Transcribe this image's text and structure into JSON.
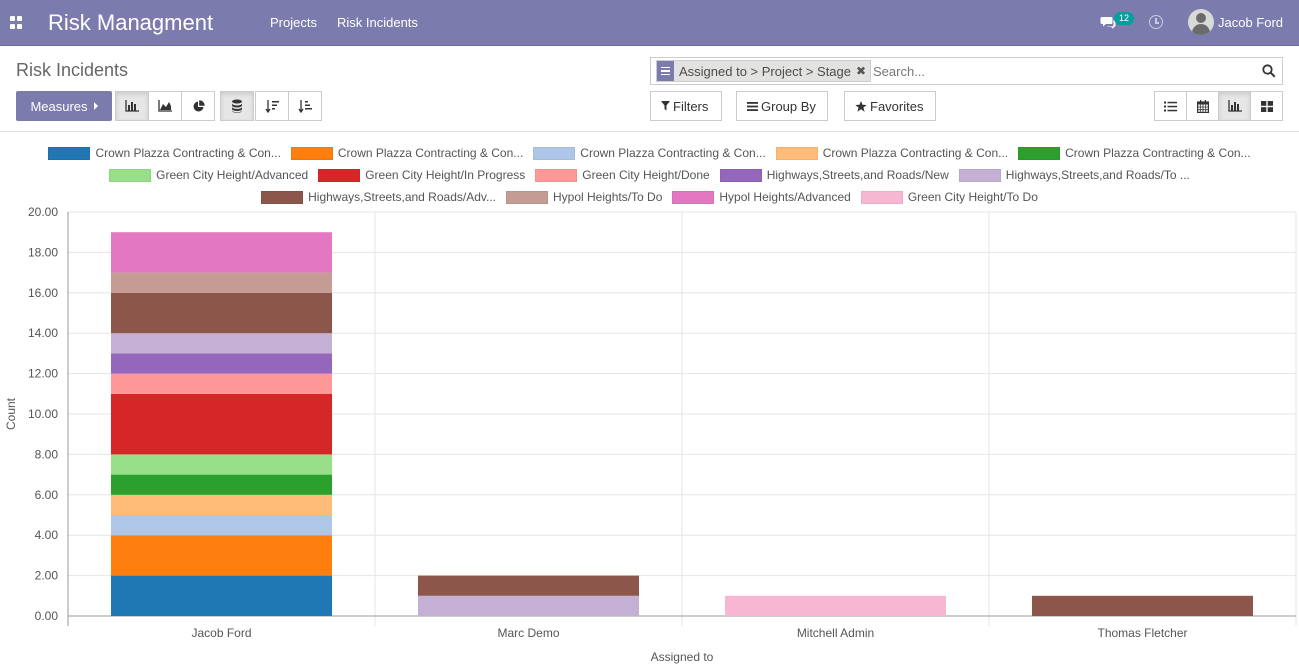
{
  "navbar": {
    "brand": "Risk Managment",
    "menu": [
      "Projects",
      "Risk Incidents"
    ],
    "chat_badge": "12",
    "user_name": "Jacob Ford",
    "bg_color": "#7c7bad"
  },
  "control_panel": {
    "title": "Risk Incidents",
    "search_facet": "Assigned to > Project > Stage",
    "search_placeholder": "Search...",
    "measures_label": "Measures",
    "filters_label": "Filters",
    "group_by_label": "Group By",
    "favorites_label": "Favorites",
    "chart_type_buttons": [
      "bar-chart-icon",
      "line-chart-icon",
      "pie-chart-icon"
    ],
    "stacked_button": "stack-icon",
    "sort_buttons": [
      "sort-descending-icon",
      "sort-ascending-icon"
    ],
    "view_switcher": [
      "list-view-icon",
      "calendar-view-icon",
      "graph-view-icon",
      "kanban-view-icon"
    ],
    "active_view": "graph-view-icon"
  },
  "chart_data": {
    "type": "bar",
    "stacked": true,
    "xlabel": "Assigned to",
    "ylabel": "Count",
    "ylim": [
      0,
      20
    ],
    "yticks": [
      "0.00",
      "2.00",
      "4.00",
      "6.00",
      "8.00",
      "10.00",
      "12.00",
      "14.00",
      "16.00",
      "18.00",
      "20.00"
    ],
    "categories": [
      "Jacob Ford",
      "Marc Demo",
      "Mitchell Admin",
      "Thomas Fletcher"
    ],
    "legend_position": "top",
    "grid": true,
    "series": [
      {
        "name": "Crown Plazza Contracting & Con...",
        "color": "#1f77b4",
        "values": [
          2,
          0,
          0,
          0
        ]
      },
      {
        "name": "Crown Plazza Contracting & Con...",
        "color": "#ff7f0e",
        "values": [
          2,
          0,
          0,
          0
        ]
      },
      {
        "name": "Crown Plazza Contracting & Con...",
        "color": "#aec7e8",
        "values": [
          1,
          0,
          0,
          0
        ]
      },
      {
        "name": "Crown Plazza Contracting & Con...",
        "color": "#ffbb78",
        "values": [
          1,
          0,
          0,
          0
        ]
      },
      {
        "name": "Crown Plazza Contracting & Con...",
        "color": "#2ca02c",
        "values": [
          1,
          0,
          0,
          0
        ]
      },
      {
        "name": "Green City Height/Advanced",
        "color": "#98df8a",
        "values": [
          1,
          0,
          0,
          0
        ]
      },
      {
        "name": "Green City Height/In Progress",
        "color": "#d62728",
        "values": [
          3,
          0,
          0,
          0
        ]
      },
      {
        "name": "Green City Height/Done",
        "color": "#ff9896",
        "values": [
          1,
          0,
          0,
          0
        ]
      },
      {
        "name": "Highways,Streets,and Roads/New",
        "color": "#9467bd",
        "values": [
          1,
          0,
          0,
          0
        ]
      },
      {
        "name": "Highways,Streets,and Roads/To ...",
        "color": "#c5b0d5",
        "values": [
          1,
          1,
          0,
          0
        ]
      },
      {
        "name": "Highways,Streets,and Roads/Adv...",
        "color": "#8c564b",
        "values": [
          2,
          1,
          0,
          1
        ]
      },
      {
        "name": "Hypol Heights/To Do",
        "color": "#c49c94",
        "values": [
          1,
          0,
          0,
          0
        ]
      },
      {
        "name": "Hypol Heights/Advanced",
        "color": "#e377c2",
        "values": [
          2,
          0,
          0,
          0
        ]
      },
      {
        "name": "Green City Height/To Do",
        "color": "#f7b6d2",
        "values": [
          0,
          0,
          1,
          0
        ]
      }
    ]
  }
}
